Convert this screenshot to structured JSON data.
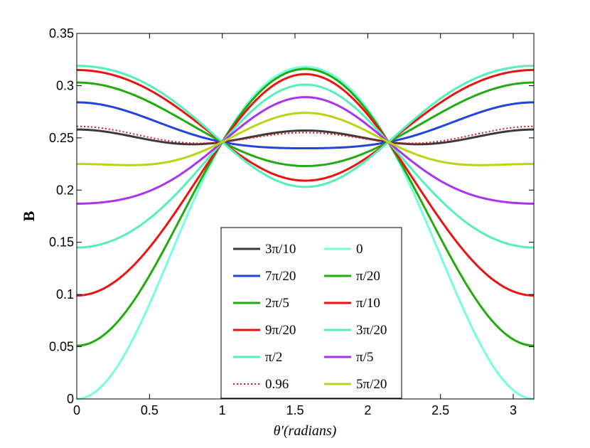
{
  "chart_data": {
    "type": "line",
    "title": "",
    "xlabel": "θ′(radians)",
    "ylabel": "B",
    "xlim": [
      0,
      3.1416
    ],
    "ylim": [
      0,
      0.35
    ],
    "grid": false,
    "legend_position": "bottom-center",
    "xticks": [
      0,
      0.5,
      1,
      1.5,
      2,
      2.5,
      3
    ],
    "xtick_labels": [
      "0",
      "0.5",
      "1",
      "1.5",
      "2",
      "2.5",
      "3"
    ],
    "yticks": [
      0,
      0.05,
      0.1,
      0.15,
      0.2,
      0.25,
      0.3,
      0.35
    ],
    "ytick_labels": [
      "0",
      "0.05",
      "0.1",
      "0.15",
      "0.2",
      "0.25",
      "0.3",
      "0.35"
    ],
    "series": [
      {
        "name": "3π/10",
        "color": "#3a3a3a",
        "style": "solid",
        "edge": 0.258,
        "center": 0.257
      },
      {
        "name": "7π/20",
        "color": "#2244dd",
        "style": "solid",
        "edge": 0.284,
        "center": 0.24
      },
      {
        "name": "2π/5",
        "color": "#22aa11",
        "style": "solid",
        "edge": 0.303,
        "center": 0.223
      },
      {
        "name": "9π/20",
        "color": "#ee1111",
        "style": "solid",
        "edge": 0.315,
        "center": 0.209
      },
      {
        "name": "π/2",
        "color": "#55f0b8",
        "style": "solid",
        "edge": 0.319,
        "center": 0.203
      },
      {
        "name": "0.96",
        "color": "#ee1111",
        "style": "dotted",
        "edge": 0.261,
        "center": 0.255
      },
      {
        "name": "0",
        "color": "#77ffdd",
        "style": "solid",
        "edge": 0.0,
        "center": 0.318
      },
      {
        "name": "π/20",
        "color": "#22aa11",
        "style": "solid",
        "edge": 0.051,
        "center": 0.316
      },
      {
        "name": "π/10",
        "color": "#ee1111",
        "style": "solid",
        "edge": 0.099,
        "center": 0.311
      },
      {
        "name": "3π/20",
        "color": "#55f0b8",
        "style": "solid",
        "edge": 0.145,
        "center": 0.301
      },
      {
        "name": "π/5",
        "color": "#aa33ee",
        "style": "solid",
        "edge": 0.187,
        "center": 0.289
      },
      {
        "name": "5π/20",
        "color": "#bbd411",
        "style": "solid",
        "edge": 0.225,
        "center": 0.274
      }
    ]
  }
}
